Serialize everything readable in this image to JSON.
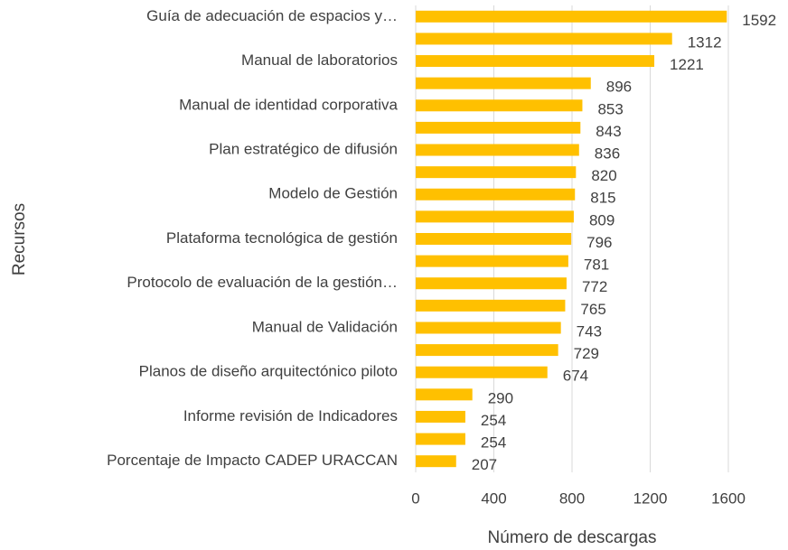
{
  "chart_data": {
    "type": "bar",
    "orientation": "horizontal",
    "x_label": "Número de descargas",
    "y_label": "Recursos",
    "categories": [
      "Guía de adecuación de espacios y…",
      null,
      "Manual de laboratorios",
      null,
      "Manual de identidad corporativa",
      null,
      "Plan estratégico de difusión",
      null,
      "Modelo de Gestión",
      null,
      "Plataforma tecnológica de gestión",
      null,
      "Protocolo de evaluación de la gestión…",
      null,
      "Manual de Validación",
      null,
      "Planos de diseño arquitectónico piloto",
      null,
      "Informe revisión de Indicadores",
      null,
      "Porcentaje de Impacto CADEP URACCAN"
    ],
    "values": [
      1592,
      1312,
      1221,
      896,
      853,
      843,
      836,
      820,
      815,
      809,
      796,
      781,
      772,
      765,
      743,
      729,
      674,
      290,
      254,
      254,
      207
    ],
    "color": "#ffc000",
    "xlim": [
      0,
      1600
    ],
    "xticks": [
      0,
      400,
      800,
      1200,
      1600
    ],
    "grid": true
  }
}
